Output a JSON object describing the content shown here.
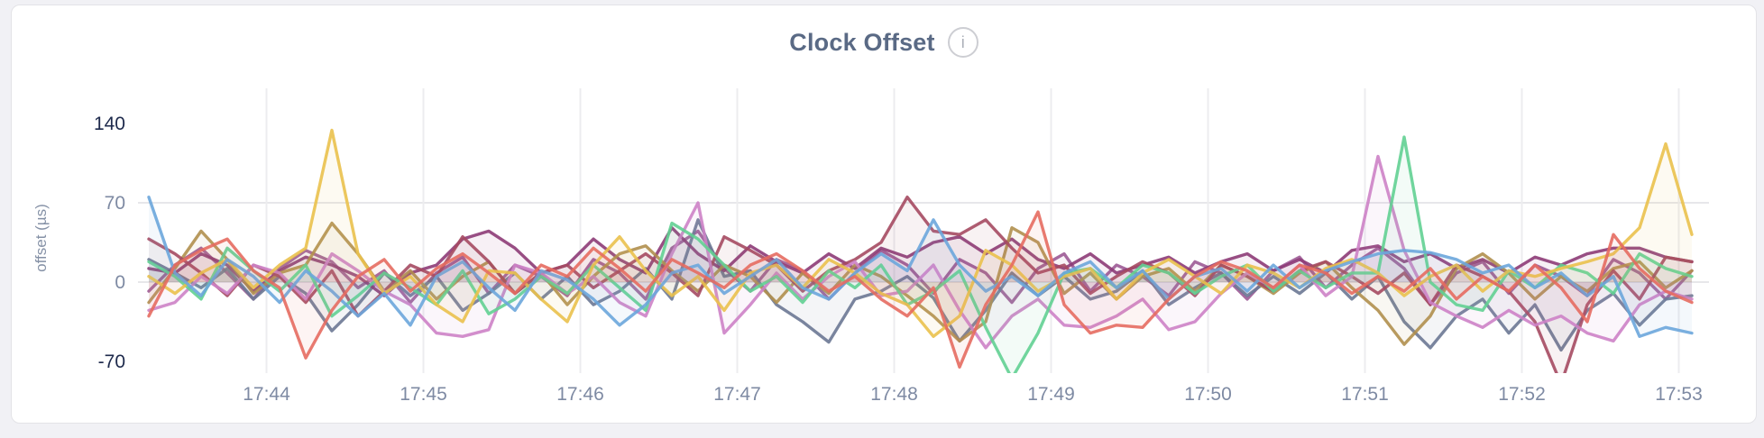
{
  "header": {
    "title": "Clock Offset",
    "info_icon": "i"
  },
  "style": {
    "page_background": "#f1f1f5",
    "card_background": "#ffffff",
    "card_border": "#e3e3e7",
    "title_color": "#5a6a85",
    "tick_color_emphasis": "#1e2a4c",
    "tick_color_muted": "#7e8aa3",
    "axis_label_color": "#8591a6",
    "grid_color_vertical": "#ececef",
    "grid_color_horizontal": "#e7e7ea"
  },
  "chart_data": {
    "type": "line",
    "title": "Clock Offset",
    "xlabel": "",
    "ylabel": "offset (µs)",
    "ylim": [
      -70,
      140
    ],
    "grid": true,
    "legend_position": "none",
    "x_start": "17:43:15",
    "x_interval_seconds": 10,
    "x_ticks": [
      "17:44",
      "17:45",
      "17:46",
      "17:47",
      "17:48",
      "17:49",
      "17:50",
      "17:51",
      "17:52",
      "17:53"
    ],
    "y_ticks": [
      {
        "label": "140",
        "value": 140,
        "emphasis": true,
        "gridline": false
      },
      {
        "label": "70",
        "value": 70,
        "emphasis": false,
        "gridline": true
      },
      {
        "label": "0",
        "value": 0,
        "emphasis": false,
        "gridline": true
      },
      {
        "label": "-70",
        "value": -70,
        "emphasis": true,
        "gridline": false
      }
    ],
    "series": [
      {
        "name": "series-violet",
        "color": "#9c5a95",
        "values": [
          -8,
          15,
          30,
          8,
          -15,
          12,
          28,
          18,
          -5,
          10,
          -18,
          8,
          22,
          -10,
          15,
          5,
          -12,
          20,
          8,
          -15,
          30,
          45,
          12,
          -8,
          20,
          10,
          -15,
          8,
          28,
          15,
          -10,
          20,
          8,
          -18,
          12,
          25,
          -8,
          15,
          5,
          -12,
          18,
          8,
          -15,
          10,
          22,
          -5,
          15,
          30,
          12,
          -20,
          8,
          18,
          -10,
          15,
          5,
          -12,
          20,
          8,
          -15,
          10
        ]
      },
      {
        "name": "series-slate",
        "color": "#6b7894",
        "values": [
          20,
          8,
          -5,
          12,
          -15,
          5,
          -10,
          -43,
          -20,
          8,
          -12,
          5,
          -25,
          -10,
          8,
          -15,
          5,
          -20,
          -8,
          12,
          -15,
          55,
          5,
          10,
          -20,
          -35,
          -53,
          -15,
          -8,
          5,
          -14,
          -52,
          -25,
          8,
          -12,
          5,
          -15,
          -8,
          10,
          -20,
          -5,
          8,
          -12,
          5,
          -10,
          8,
          -15,
          5,
          -35,
          -58,
          -30,
          -15,
          -45,
          -20,
          -60,
          -25,
          -10,
          -38,
          -15,
          -12
        ]
      },
      {
        "name": "series-plum",
        "color": "#8d3b77",
        "values": [
          12,
          8,
          25,
          15,
          -8,
          10,
          22,
          15,
          5,
          -12,
          8,
          15,
          38,
          45,
          30,
          8,
          15,
          38,
          20,
          8,
          48,
          25,
          10,
          32,
          18,
          8,
          25,
          12,
          30,
          22,
          35,
          40,
          25,
          38,
          20,
          12,
          25,
          8,
          15,
          22,
          8,
          18,
          25,
          10,
          20,
          8,
          28,
          32,
          18,
          25,
          12,
          20,
          8,
          22,
          15,
          25,
          30,
          30,
          22,
          18
        ]
      },
      {
        "name": "series-khaki",
        "color": "#b08f4e",
        "values": [
          -18,
          12,
          45,
          20,
          -10,
          8,
          15,
          52,
          25,
          -8,
          10,
          -15,
          5,
          18,
          -10,
          8,
          -20,
          5,
          25,
          32,
          10,
          -8,
          15,
          5,
          -18,
          8,
          -10,
          15,
          5,
          -12,
          -30,
          -52,
          -35,
          48,
          35,
          -10,
          8,
          -15,
          5,
          12,
          -8,
          15,
          5,
          -10,
          8,
          18,
          -5,
          -25,
          -55,
          -30,
          12,
          25,
          8,
          -15,
          5,
          -8,
          12,
          18,
          -5,
          10
        ]
      },
      {
        "name": "series-maroon",
        "color": "#a54a62",
        "values": [
          38,
          25,
          8,
          -12,
          15,
          5,
          -18,
          10,
          -30,
          -8,
          15,
          5,
          40,
          18,
          -10,
          8,
          15,
          -5,
          10,
          25,
          8,
          -12,
          40,
          28,
          15,
          -8,
          10,
          20,
          35,
          75,
          45,
          42,
          55,
          30,
          8,
          15,
          -10,
          5,
          18,
          8,
          -12,
          15,
          5,
          -8,
          10,
          18,
          5,
          -10,
          8,
          -20,
          15,
          5,
          -8,
          -35,
          -90,
          -20,
          10,
          -15,
          22,
          18
        ]
      },
      {
        "name": "series-orchid",
        "color": "#cd82c6",
        "values": [
          -25,
          -18,
          5,
          -10,
          15,
          8,
          -15,
          25,
          10,
          -8,
          -20,
          -45,
          -48,
          -42,
          15,
          8,
          -10,
          5,
          -18,
          -30,
          25,
          70,
          -45,
          -20,
          8,
          -15,
          5,
          18,
          -12,
          -8,
          15,
          -25,
          -58,
          -30,
          -15,
          -38,
          -40,
          -30,
          -15,
          -42,
          -35,
          -10,
          8,
          -5,
          15,
          -12,
          5,
          111,
          28,
          -18,
          -30,
          -40,
          -25,
          -38,
          -30,
          -45,
          -52,
          -20,
          -8,
          -15
        ]
      },
      {
        "name": "series-green",
        "color": "#62d092",
        "values": [
          18,
          5,
          -15,
          30,
          10,
          -8,
          15,
          -30,
          -12,
          8,
          -5,
          -20,
          10,
          -28,
          -15,
          5,
          -10,
          15,
          -5,
          -25,
          52,
          38,
          15,
          -8,
          5,
          -18,
          10,
          -5,
          15,
          -20,
          -8,
          10,
          -40,
          -85,
          -45,
          8,
          12,
          -5,
          15,
          8,
          -10,
          5,
          15,
          -8,
          10,
          -5,
          8,
          8,
          128,
          0,
          -20,
          -25,
          10,
          -5,
          15,
          8,
          -10,
          25,
          12,
          5
        ]
      },
      {
        "name": "series-yellow",
        "color": "#eac14d",
        "values": [
          5,
          -10,
          8,
          20,
          -5,
          15,
          30,
          134,
          25,
          -10,
          5,
          -20,
          -35,
          10,
          8,
          -15,
          -35,
          15,
          40,
          10,
          -12,
          5,
          -25,
          8,
          15,
          -5,
          20,
          8,
          -10,
          -20,
          -48,
          -30,
          28,
          15,
          -8,
          5,
          12,
          -15,
          8,
          20,
          5,
          -10,
          15,
          8,
          -5,
          12,
          20,
          8,
          -12,
          5,
          15,
          -8,
          10,
          5,
          12,
          18,
          25,
          48,
          122,
          42
        ]
      },
      {
        "name": "series-blue",
        "color": "#6ba6db",
        "values": [
          75,
          8,
          -12,
          20,
          5,
          -18,
          10,
          -8,
          -30,
          -10,
          -38,
          5,
          18,
          -5,
          -25,
          10,
          2,
          -15,
          -38,
          -20,
          8,
          15,
          -10,
          5,
          20,
          -5,
          -15,
          8,
          25,
          10,
          55,
          15,
          -8,
          5,
          -12,
          8,
          18,
          -5,
          10,
          -15,
          5,
          12,
          -8,
          15,
          -5,
          10,
          18,
          25,
          28,
          26,
          20,
          8,
          15,
          -5,
          8,
          -12,
          5,
          -48,
          -40,
          -45
        ]
      },
      {
        "name": "series-red",
        "color": "#e56b60",
        "values": [
          -30,
          15,
          28,
          38,
          10,
          -5,
          -67,
          -25,
          5,
          20,
          -8,
          12,
          25,
          8,
          -10,
          15,
          5,
          30,
          12,
          -8,
          20,
          8,
          -5,
          15,
          25,
          10,
          -8,
          5,
          -15,
          -30,
          -5,
          -75,
          -20,
          15,
          62,
          -20,
          -45,
          -38,
          -40,
          -15,
          5,
          18,
          10,
          -5,
          15,
          8,
          -10,
          5,
          -8,
          12,
          -15,
          5,
          -8,
          15,
          -5,
          -35,
          42,
          12,
          -8,
          -18
        ]
      }
    ]
  }
}
